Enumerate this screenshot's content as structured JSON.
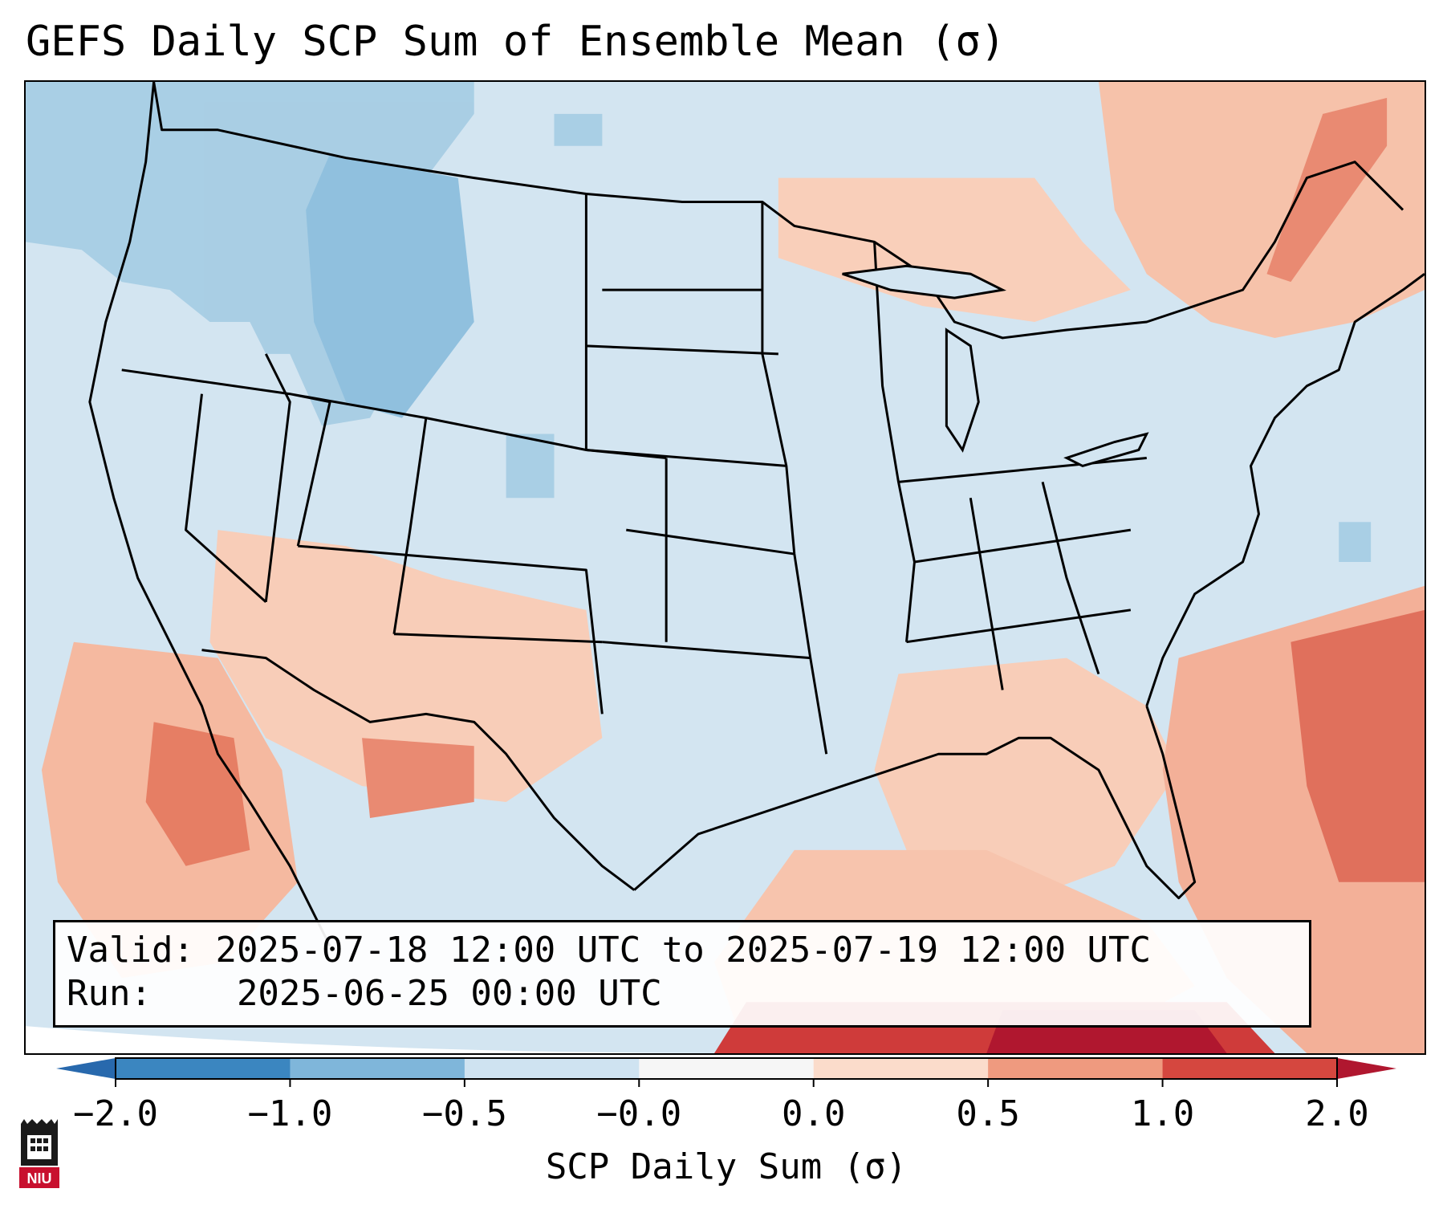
{
  "title": "GEFS Daily SCP Sum of Ensemble Mean (σ)",
  "info": {
    "valid_label": "Valid:",
    "valid_value": "2025-07-18 12:00 UTC to 2025-07-19 12:00 UTC",
    "run_label": "Run:",
    "run_value": "2025-06-25 00:00 UTC"
  },
  "colorbar": {
    "label": "SCP Daily Sum (σ)",
    "tick_labels": [
      "−2.0",
      "−1.0",
      "−0.5",
      "−0.0",
      "0.0",
      "0.5",
      "1.0",
      "2.0"
    ],
    "segment_colors": [
      "#3b86c0",
      "#7fb6da",
      "#cfe3f1",
      "#f6f6f6",
      "#fbdccb",
      "#ef9a7f",
      "#d5473f"
    ],
    "extend_low_color": "#2869ad",
    "extend_high_color": "#b0172f"
  },
  "map": {
    "land_color": "#d3e5f1",
    "ocean_color": "#d3e5f1",
    "border_color": "#000000",
    "region_labels": []
  },
  "logo": {
    "text": "NIU",
    "icon": "niu-castle-logo-icon"
  }
}
